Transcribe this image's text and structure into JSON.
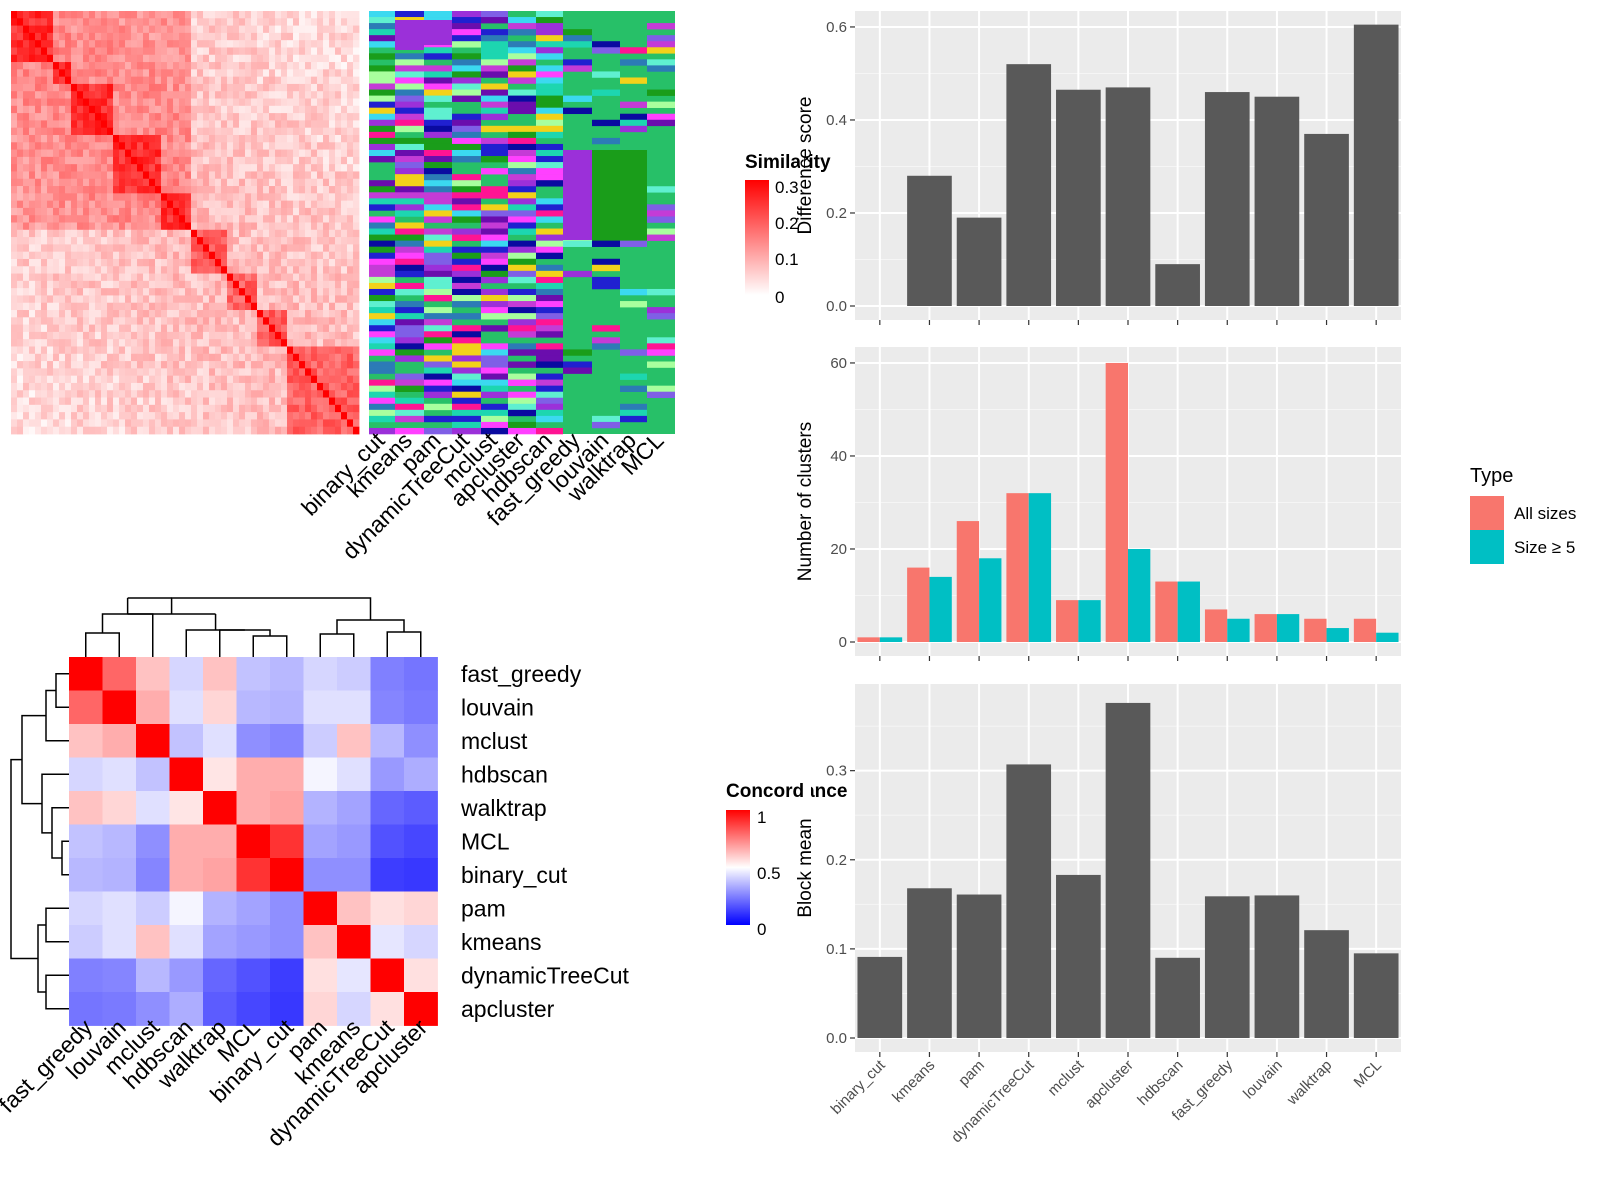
{
  "colors": {
    "panel_bg": "#ebebeb",
    "bar_gray": "#595959",
    "all_sizes": "#f8766d",
    "size_ge5": "#00bfc4",
    "sim_high": "#ff0000",
    "low": "#0000ff",
    "mid": "#ffffff"
  },
  "similarity_panel": {
    "legend_title": "Similarity",
    "legend_ticks": [
      "0.3",
      "0.2",
      "0.1",
      "0"
    ],
    "method_labels": [
      "binary_cut",
      "kmeans",
      "pam",
      "dynamicTreeCut",
      "mclust",
      "apcluster",
      "hdbscan",
      "fast_greedy",
      "louvain",
      "walktrap",
      "MCL"
    ]
  },
  "concordance_panel": {
    "legend_title": "Concordance",
    "legend_ticks": [
      "1",
      "0.5",
      "0"
    ],
    "row_labels": [
      "fast_greedy",
      "louvain",
      "mclust",
      "hdbscan",
      "walktrap",
      "MCL",
      "binary_cut",
      "pam",
      "kmeans",
      "dynamicTreeCut",
      "apcluster"
    ],
    "col_labels": [
      "fast_greedy",
      "louvain",
      "mclust",
      "hdbscan",
      "walktrap",
      "MCL",
      "binary_cut",
      "pam",
      "kmeans",
      "dynamicTreeCut",
      "apcluster"
    ]
  },
  "chart_data": [
    {
      "type": "heatmap",
      "title": "Concordance",
      "rows": [
        "fast_greedy",
        "louvain",
        "mclust",
        "hdbscan",
        "walktrap",
        "MCL",
        "binary_cut",
        "pam",
        "kmeans",
        "dynamicTreeCut",
        "apcluster"
      ],
      "cols": [
        "fast_greedy",
        "louvain",
        "mclust",
        "hdbscan",
        "walktrap",
        "MCL",
        "binary_cut",
        "pam",
        "kmeans",
        "dynamicTreeCut",
        "apcluster"
      ],
      "values": [
        [
          1.0,
          0.8,
          0.62,
          0.42,
          0.62,
          0.38,
          0.36,
          0.42,
          0.4,
          0.25,
          0.23
        ],
        [
          0.8,
          1.0,
          0.66,
          0.44,
          0.58,
          0.36,
          0.35,
          0.44,
          0.44,
          0.26,
          0.24
        ],
        [
          0.62,
          0.66,
          1.0,
          0.38,
          0.44,
          0.28,
          0.26,
          0.4,
          0.62,
          0.36,
          0.28
        ],
        [
          0.42,
          0.44,
          0.38,
          1.0,
          0.55,
          0.66,
          0.66,
          0.48,
          0.44,
          0.3,
          0.34
        ],
        [
          0.62,
          0.58,
          0.44,
          0.55,
          1.0,
          0.66,
          0.68,
          0.35,
          0.32,
          0.2,
          0.18
        ],
        [
          0.38,
          0.36,
          0.28,
          0.66,
          0.66,
          1.0,
          0.9,
          0.32,
          0.3,
          0.16,
          0.14
        ],
        [
          0.36,
          0.35,
          0.26,
          0.66,
          0.68,
          0.9,
          1.0,
          0.28,
          0.28,
          0.12,
          0.11
        ],
        [
          0.42,
          0.44,
          0.4,
          0.48,
          0.35,
          0.32,
          0.28,
          1.0,
          0.62,
          0.56,
          0.58
        ],
        [
          0.4,
          0.44,
          0.62,
          0.44,
          0.32,
          0.3,
          0.28,
          0.62,
          1.0,
          0.45,
          0.42
        ],
        [
          0.25,
          0.26,
          0.36,
          0.3,
          0.2,
          0.16,
          0.12,
          0.56,
          0.45,
          1.0,
          0.56
        ],
        [
          0.23,
          0.24,
          0.28,
          0.34,
          0.18,
          0.14,
          0.11,
          0.58,
          0.42,
          0.56,
          1.0
        ]
      ],
      "legend_range": [
        0,
        1
      ]
    },
    {
      "type": "bar",
      "categories": [
        "binary_cut",
        "kmeans",
        "pam",
        "dynamicTreeCut",
        "mclust",
        "apcluster",
        "hdbscan",
        "fast_greedy",
        "louvain",
        "walktrap",
        "MCL"
      ],
      "values": [
        0,
        0.28,
        0.19,
        0.52,
        0.465,
        0.47,
        0.09,
        0.46,
        0.45,
        0.37,
        0.605
      ],
      "ylabel": "Difference score",
      "ylim": [
        0,
        0.63
      ],
      "yticks": [
        "0.0",
        "0.2",
        "0.4",
        "0.6"
      ],
      "grid": true
    },
    {
      "type": "bar",
      "categories": [
        "binary_cut",
        "kmeans",
        "pam",
        "dynamicTreeCut",
        "mclust",
        "apcluster",
        "hdbscan",
        "fast_greedy",
        "louvain",
        "walktrap",
        "MCL"
      ],
      "series": [
        {
          "name": "All sizes",
          "values": [
            1,
            16,
            26,
            32,
            9,
            60,
            13,
            7,
            6,
            5,
            5
          ]
        },
        {
          "name": "Size ≥ 5",
          "values": [
            1,
            14,
            18,
            32,
            9,
            20,
            13,
            5,
            6,
            3,
            2
          ]
        }
      ],
      "ylabel": "Number of clusters",
      "ylim": [
        0,
        63
      ],
      "yticks": [
        "0",
        "20",
        "40",
        "60"
      ],
      "legend_title": "Type",
      "legend_position": "right",
      "grid": true
    },
    {
      "type": "bar",
      "categories": [
        "binary_cut",
        "kmeans",
        "pam",
        "dynamicTreeCut",
        "mclust",
        "apcluster",
        "hdbscan",
        "fast_greedy",
        "louvain",
        "walktrap",
        "MCL"
      ],
      "values": [
        0.091,
        0.168,
        0.161,
        0.307,
        0.183,
        0.376,
        0.09,
        0.159,
        0.16,
        0.121,
        0.095
      ],
      "ylabel": "Block mean",
      "ylim": [
        0,
        0.395
      ],
      "yticks": [
        "0.0",
        "0.1",
        "0.2",
        "0.3"
      ],
      "grid": true
    }
  ]
}
